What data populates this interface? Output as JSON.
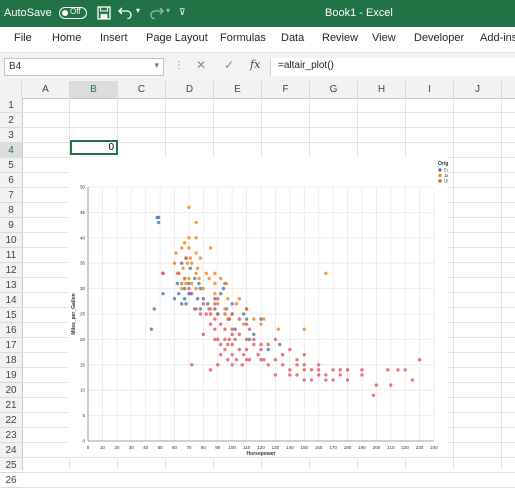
{
  "titlebar": {
    "autosave": "AutoSave",
    "toggle": "Off",
    "title": "Book1 - Excel",
    "accent": "#217346"
  },
  "menu": [
    "File",
    "Home",
    "Insert",
    "Page Layout",
    "Formulas",
    "Data",
    "Review",
    "View",
    "Developer",
    "Add-ins"
  ],
  "formula_bar": {
    "name_box": "B4",
    "fx": "fx",
    "formula": "=altair_plot()"
  },
  "columns": [
    "A",
    "B",
    "C",
    "D",
    "E",
    "F",
    "G",
    "H",
    "I",
    "J"
  ],
  "rows": [
    "1",
    "2",
    "3",
    "4",
    "5",
    "6",
    "7",
    "8",
    "9",
    "10",
    "11",
    "12",
    "13",
    "14",
    "15",
    "16",
    "17",
    "18",
    "19",
    "20",
    "21",
    "22",
    "23",
    "24",
    "25",
    "26"
  ],
  "cells": {
    "B4": "0"
  },
  "chart_data": {
    "type": "scatter",
    "xlabel": "Horsepower",
    "ylabel": "Miles_per_Gallon",
    "xlim": [
      0,
      240
    ],
    "ylim": [
      0,
      50
    ],
    "xticks": [
      0,
      10,
      20,
      30,
      40,
      50,
      60,
      70,
      80,
      90,
      100,
      110,
      120,
      130,
      140,
      150,
      160,
      170,
      180,
      190,
      200,
      210,
      220,
      230,
      240
    ],
    "yticks": [
      0,
      5,
      10,
      15,
      20,
      25,
      30,
      35,
      40,
      45,
      50
    ],
    "grid": true,
    "legend": {
      "title": "Origin",
      "position": "top-right"
    },
    "series": [
      {
        "name": "Europe",
        "color": "#4c78a8",
        "points": [
          [
            46,
            26
          ],
          [
            48,
            44
          ],
          [
            49,
            43
          ],
          [
            49,
            44
          ],
          [
            52,
            29
          ],
          [
            52,
            33
          ],
          [
            60,
            28
          ],
          [
            62,
            31
          ],
          [
            63,
            29
          ],
          [
            65,
            27
          ],
          [
            65,
            35
          ],
          [
            67,
            28
          ],
          [
            67,
            30
          ],
          [
            67,
            32
          ],
          [
            68,
            27
          ],
          [
            70,
            29
          ],
          [
            70,
            31
          ],
          [
            71,
            29
          ],
          [
            71,
            34
          ],
          [
            74,
            26
          ],
          [
            74,
            32
          ],
          [
            76,
            28
          ],
          [
            77,
            31
          ],
          [
            78,
            26
          ],
          [
            78,
            30
          ],
          [
            80,
            28
          ],
          [
            83,
            27
          ],
          [
            88,
            26
          ],
          [
            88,
            28
          ],
          [
            90,
            25
          ],
          [
            92,
            29
          ],
          [
            94,
            30
          ],
          [
            96,
            26
          ],
          [
            95,
            31
          ],
          [
            98,
            24
          ],
          [
            100,
            27
          ],
          [
            102,
            22
          ],
          [
            108,
            25
          ],
          [
            110,
            24
          ],
          [
            112,
            20
          ],
          [
            115,
            21
          ],
          [
            120,
            24
          ],
          [
            125,
            18
          ],
          [
            133,
            19
          ],
          [
            44,
            22
          ]
        ]
      },
      {
        "name": "Japan",
        "color": "#f58518",
        "points": [
          [
            60,
            35
          ],
          [
            61,
            37
          ],
          [
            62,
            33
          ],
          [
            65,
            30
          ],
          [
            65,
            38
          ],
          [
            66,
            34
          ],
          [
            67,
            32
          ],
          [
            67,
            39
          ],
          [
            68,
            31
          ],
          [
            68,
            36
          ],
          [
            69,
            35
          ],
          [
            70,
            32
          ],
          [
            70,
            38
          ],
          [
            70,
            40
          ],
          [
            70,
            46
          ],
          [
            71,
            36
          ],
          [
            72,
            35
          ],
          [
            72,
            31
          ],
          [
            75,
            30
          ],
          [
            75,
            33
          ],
          [
            75,
            37
          ],
          [
            75,
            40
          ],
          [
            75,
            43
          ],
          [
            76,
            34
          ],
          [
            77,
            32
          ],
          [
            78,
            36
          ],
          [
            80,
            30
          ],
          [
            82,
            33
          ],
          [
            84,
            32
          ],
          [
            85,
            26
          ],
          [
            85,
            38
          ],
          [
            88,
            29
          ],
          [
            88,
            31
          ],
          [
            88,
            33
          ],
          [
            90,
            27
          ],
          [
            92,
            32
          ],
          [
            95,
            26
          ],
          [
            96,
            31
          ],
          [
            97,
            28
          ],
          [
            97,
            24
          ],
          [
            100,
            25
          ],
          [
            103,
            27
          ],
          [
            105,
            28
          ],
          [
            108,
            23
          ],
          [
            110,
            26
          ],
          [
            115,
            24
          ],
          [
            120,
            23
          ],
          [
            122,
            24
          ],
          [
            132,
            22
          ],
          [
            150,
            22
          ],
          [
            165,
            33
          ]
        ]
      },
      {
        "name": "USA",
        "color": "#e45756",
        "points": [
          [
            52,
            33
          ],
          [
            63,
            33
          ],
          [
            65,
            31
          ],
          [
            68,
            36
          ],
          [
            70,
            30
          ],
          [
            72,
            29
          ],
          [
            75,
            26
          ],
          [
            78,
            25
          ],
          [
            80,
            27
          ],
          [
            82,
            25
          ],
          [
            84,
            26
          ],
          [
            85,
            23
          ],
          [
            85,
            25
          ],
          [
            88,
            24
          ],
          [
            88,
            27
          ],
          [
            88,
            20
          ],
          [
            88,
            22
          ],
          [
            90,
            20
          ],
          [
            90,
            25
          ],
          [
            90,
            28
          ],
          [
            92,
            23
          ],
          [
            95,
            18
          ],
          [
            95,
            22
          ],
          [
            95,
            25
          ],
          [
            97,
            19
          ],
          [
            98,
            20
          ],
          [
            98,
            24
          ],
          [
            100,
            17
          ],
          [
            100,
            19
          ],
          [
            100,
            22
          ],
          [
            100,
            25
          ],
          [
            102,
            20
          ],
          [
            105,
            18
          ],
          [
            105,
            21
          ],
          [
            105,
            24
          ],
          [
            108,
            17
          ],
          [
            110,
            18
          ],
          [
            110,
            20
          ],
          [
            110,
            23
          ],
          [
            110,
            26
          ],
          [
            112,
            22
          ],
          [
            115,
            19
          ],
          [
            115,
            20
          ],
          [
            118,
            17
          ],
          [
            120,
            16
          ],
          [
            120,
            19
          ],
          [
            125,
            19
          ],
          [
            125,
            15
          ],
          [
            130,
            16
          ],
          [
            130,
            20
          ],
          [
            135,
            17
          ],
          [
            135,
            15
          ],
          [
            140,
            14
          ],
          [
            140,
            18
          ],
          [
            145,
            15
          ],
          [
            145,
            13
          ],
          [
            150,
            15
          ],
          [
            150,
            14
          ],
          [
            150,
            17
          ],
          [
            155,
            14
          ],
          [
            160,
            13
          ],
          [
            160,
            15
          ],
          [
            165,
            13
          ],
          [
            170,
            14
          ],
          [
            170,
            12
          ],
          [
            175,
            13
          ],
          [
            180,
            14
          ],
          [
            180,
            12
          ],
          [
            190,
            13
          ],
          [
            198,
            9
          ],
          [
            200,
            11
          ],
          [
            208,
            14
          ],
          [
            210,
            11
          ],
          [
            215,
            14
          ],
          [
            220,
            14
          ],
          [
            225,
            12
          ],
          [
            230,
            16
          ],
          [
            72,
            15
          ],
          [
            80,
            21
          ],
          [
            85,
            14
          ],
          [
            92,
            17
          ],
          [
            97,
            16
          ],
          [
            103,
            16
          ],
          [
            107,
            15
          ],
          [
            112,
            16
          ],
          [
            122,
            16
          ],
          [
            130,
            13
          ],
          [
            140,
            13
          ],
          [
            145,
            16
          ],
          [
            150,
            12
          ],
          [
            155,
            12
          ],
          [
            160,
            14
          ],
          [
            165,
            12
          ],
          [
            175,
            14
          ],
          [
            190,
            14
          ],
          [
            90,
            15
          ],
          [
            100,
            15
          ],
          [
            110,
            16
          ],
          [
            120,
            18
          ],
          [
            95,
            20
          ],
          [
            100,
            21
          ],
          [
            92,
            19
          ]
        ]
      }
    ]
  }
}
